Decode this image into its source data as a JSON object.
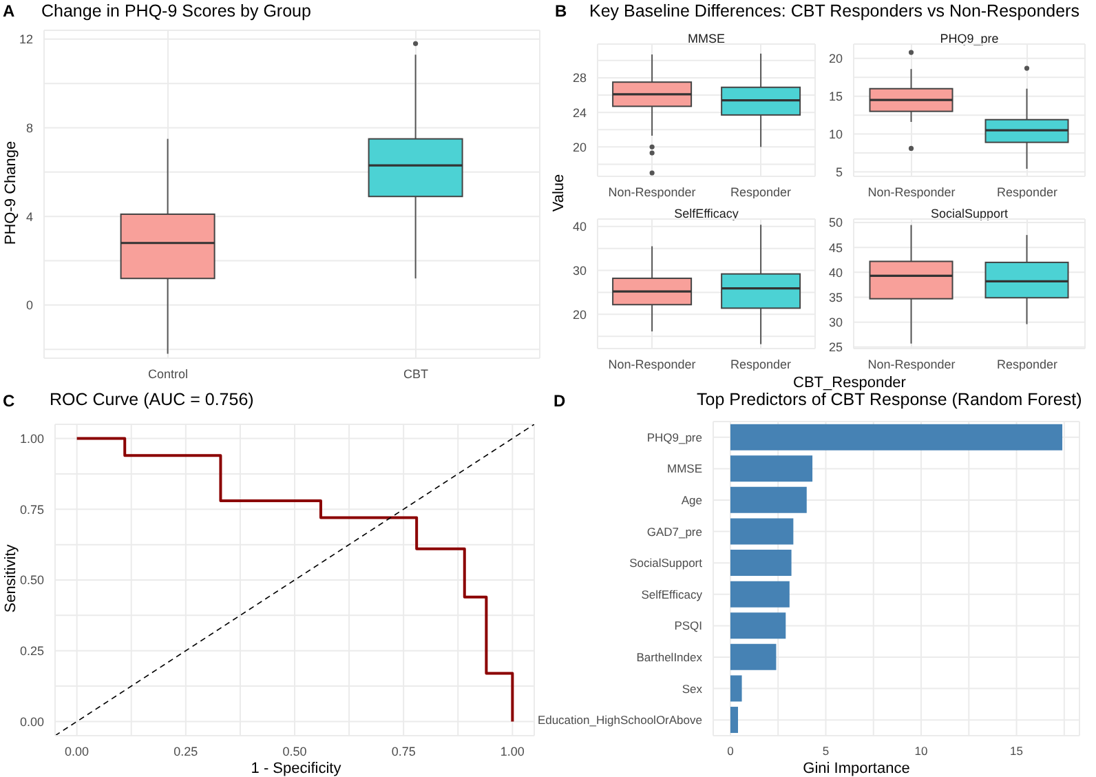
{
  "chart_data": [
    {
      "type": "box",
      "title": "Change in PHQ-9 Scores by Group",
      "ylabel": "PHQ-9 Change",
      "annotations": [
        "A"
      ],
      "categories": [
        "Control",
        "CBT"
      ],
      "colors": [
        "#f8a09a",
        "#4cd2d4"
      ],
      "boxes": [
        {
          "low": -2.2,
          "q1": 1.2,
          "median": 2.8,
          "q3": 4.1,
          "high": 7.5
        },
        {
          "low": 1.2,
          "q1": 4.9,
          "median": 6.3,
          "q3": 7.5,
          "high": 11.3,
          "outliers": [
            11.8
          ]
        }
      ],
      "ylim": [
        -2.4,
        12.4
      ],
      "yticks": [
        {
          "value": -2,
          "label": null
        },
        0,
        {
          "value": 2,
          "label": null
        },
        4,
        {
          "value": 6,
          "label": null
        },
        8,
        {
          "value": 10,
          "label": null
        },
        12
      ],
      "grid": true
    },
    {
      "type": "box",
      "title": "Key Baseline Differences: CBT Responders vs Non-Responders",
      "subtitle": "MMSE",
      "ylabel": "Value",
      "annotations": [
        "B"
      ],
      "categories": [
        "Non-Responder",
        "Responder"
      ],
      "colors": [
        "#f8a09a",
        "#4cd2d4"
      ],
      "boxes": [
        {
          "low": 21.3,
          "q1": 24.7,
          "median": 26.1,
          "q3": 27.5,
          "high": 30.7,
          "outliers": [
            20,
            19.3,
            17
          ]
        },
        {
          "low": 20,
          "q1": 23.7,
          "median": 25.4,
          "q3": 26.9,
          "high": 30.8
        }
      ],
      "ylim": [
        16.6,
        31.9
      ],
      "yticks": [
        {
          "value": 18,
          "label": null
        },
        20,
        {
          "value": 22,
          "label": null
        },
        24,
        {
          "value": 26,
          "label": null
        },
        28,
        {
          "value": 30,
          "label": null
        }
      ],
      "grid": true
    },
    {
      "type": "box",
      "subtitle": "PHQ9_pre",
      "categories": [
        "Non-Responder",
        "Responder"
      ],
      "colors": [
        "#f8a09a",
        "#4cd2d4"
      ],
      "boxes": [
        {
          "low": 11.6,
          "q1": 13,
          "median": 14.5,
          "q3": 16,
          "high": 18.6,
          "outliers": [
            20.8,
            8.1
          ]
        },
        {
          "low": 5.4,
          "q1": 8.9,
          "median": 10.5,
          "q3": 11.9,
          "high": 16,
          "outliers": [
            18.7
          ]
        }
      ],
      "ylim": [
        4.4,
        21.9
      ],
      "yticks": [
        5,
        {
          "value": 7.5,
          "label": null
        },
        10,
        {
          "value": 12.5,
          "label": null
        },
        15,
        {
          "value": 17.5,
          "label": null
        },
        20
      ],
      "grid": true
    },
    {
      "type": "box",
      "subtitle": "SelfEfficacy",
      "categories": [
        "Non-Responder",
        "Responder"
      ],
      "colors": [
        "#f8a09a",
        "#4cd2d4"
      ],
      "boxes": [
        {
          "low": 16.1,
          "q1": 22.2,
          "median": 25.2,
          "q3": 28.2,
          "high": 35.5
        },
        {
          "low": 13.2,
          "q1": 21.4,
          "median": 25.9,
          "q3": 29.2,
          "high": 40.4
        }
      ],
      "ylim": [
        12.2,
        41.7
      ],
      "yticks": [
        {
          "value": 15,
          "label": null
        },
        20,
        {
          "value": 25,
          "label": null
        },
        30,
        {
          "value": 35,
          "label": null
        },
        40
      ],
      "grid": true
    },
    {
      "type": "box",
      "subtitle": "SocialSupport",
      "xlabel": "CBT_Responder",
      "categories": [
        "Non-Responder",
        "Responder"
      ],
      "colors": [
        "#f8a09a",
        "#4cd2d4"
      ],
      "boxes": [
        {
          "low": 25.7,
          "q1": 34.7,
          "median": 39.3,
          "q3": 42.2,
          "high": 49.5
        },
        {
          "low": 29.6,
          "q1": 34.9,
          "median": 38.2,
          "q3": 42,
          "high": 47.5
        }
      ],
      "ylim": [
        24.7,
        50.7
      ],
      "yticks": [
        25,
        30,
        35,
        40,
        45,
        50
      ],
      "grid": true
    },
    {
      "type": "line",
      "title": "ROC Curve (AUC = 0.756)",
      "xlabel": "1 - Specificity",
      "ylabel": "Sensitivity",
      "annotations": [
        "C"
      ],
      "series": [
        {
          "type": "step",
          "color": "#8b0000",
          "x": [
            0,
            0.11,
            0.33,
            0.56,
            0.78,
            0.89,
            0.94,
            1,
            1
          ],
          "values": [
            1,
            0.94,
            0.78,
            0.72,
            0.61,
            0.44,
            0.17,
            0.17,
            0
          ]
        },
        {
          "type": "line",
          "color": "#000000",
          "line_style": "dashed",
          "x": [
            -0.05,
            1.05
          ],
          "values": [
            -0.05,
            1.05
          ]
        }
      ],
      "xlim": [
        -0.05,
        1.05
      ],
      "ylim": [
        -0.05,
        1.05
      ],
      "xticks": [
        {
          "value": 0,
          "label": "0.00"
        },
        {
          "value": 0.125,
          "label": null
        },
        {
          "value": 0.25,
          "label": "0.25"
        },
        {
          "value": 0.375,
          "label": null
        },
        {
          "value": 0.5,
          "label": "0.50"
        },
        {
          "value": 0.625,
          "label": null
        },
        {
          "value": 0.75,
          "label": "0.75"
        },
        {
          "value": 0.875,
          "label": null
        },
        {
          "value": 1,
          "label": "1.00"
        }
      ],
      "yticks": [
        {
          "value": 0,
          "label": "0.00"
        },
        {
          "value": 0.125,
          "label": null
        },
        {
          "value": 0.25,
          "label": "0.25"
        },
        {
          "value": 0.375,
          "label": null
        },
        {
          "value": 0.5,
          "label": "0.50"
        },
        {
          "value": 0.625,
          "label": null
        },
        {
          "value": 0.75,
          "label": "0.75"
        },
        {
          "value": 0.875,
          "label": null
        },
        {
          "value": 1,
          "label": "1.00"
        }
      ],
      "grid": true,
      "marker": "none"
    },
    {
      "type": "bar",
      "orientation": "horizontal",
      "title": "Top Predictors of CBT Response (Random Forest)",
      "xlabel": "Gini Importance",
      "annotations": [
        "D"
      ],
      "categories": [
        "PHQ9_pre",
        "MMSE",
        "Age",
        "GAD7_pre",
        "SocialSupport",
        "SelfEfficacy",
        "PSQI",
        "BarthelIndex",
        "Sex",
        "Education_HighSchoolOrAbove"
      ],
      "values": [
        17.4,
        4.3,
        4.0,
        3.3,
        3.2,
        3.1,
        2.9,
        2.4,
        0.6,
        0.4
      ],
      "color": "#4682b4",
      "xlim": [
        -0.9,
        18.3
      ],
      "xticks": [
        0,
        {
          "value": 2.5,
          "label": null
        },
        5,
        {
          "value": 7.5,
          "label": null
        },
        10,
        {
          "value": 12.5,
          "label": null
        },
        15,
        {
          "value": 17.5,
          "label": null
        }
      ],
      "grid": true
    }
  ]
}
